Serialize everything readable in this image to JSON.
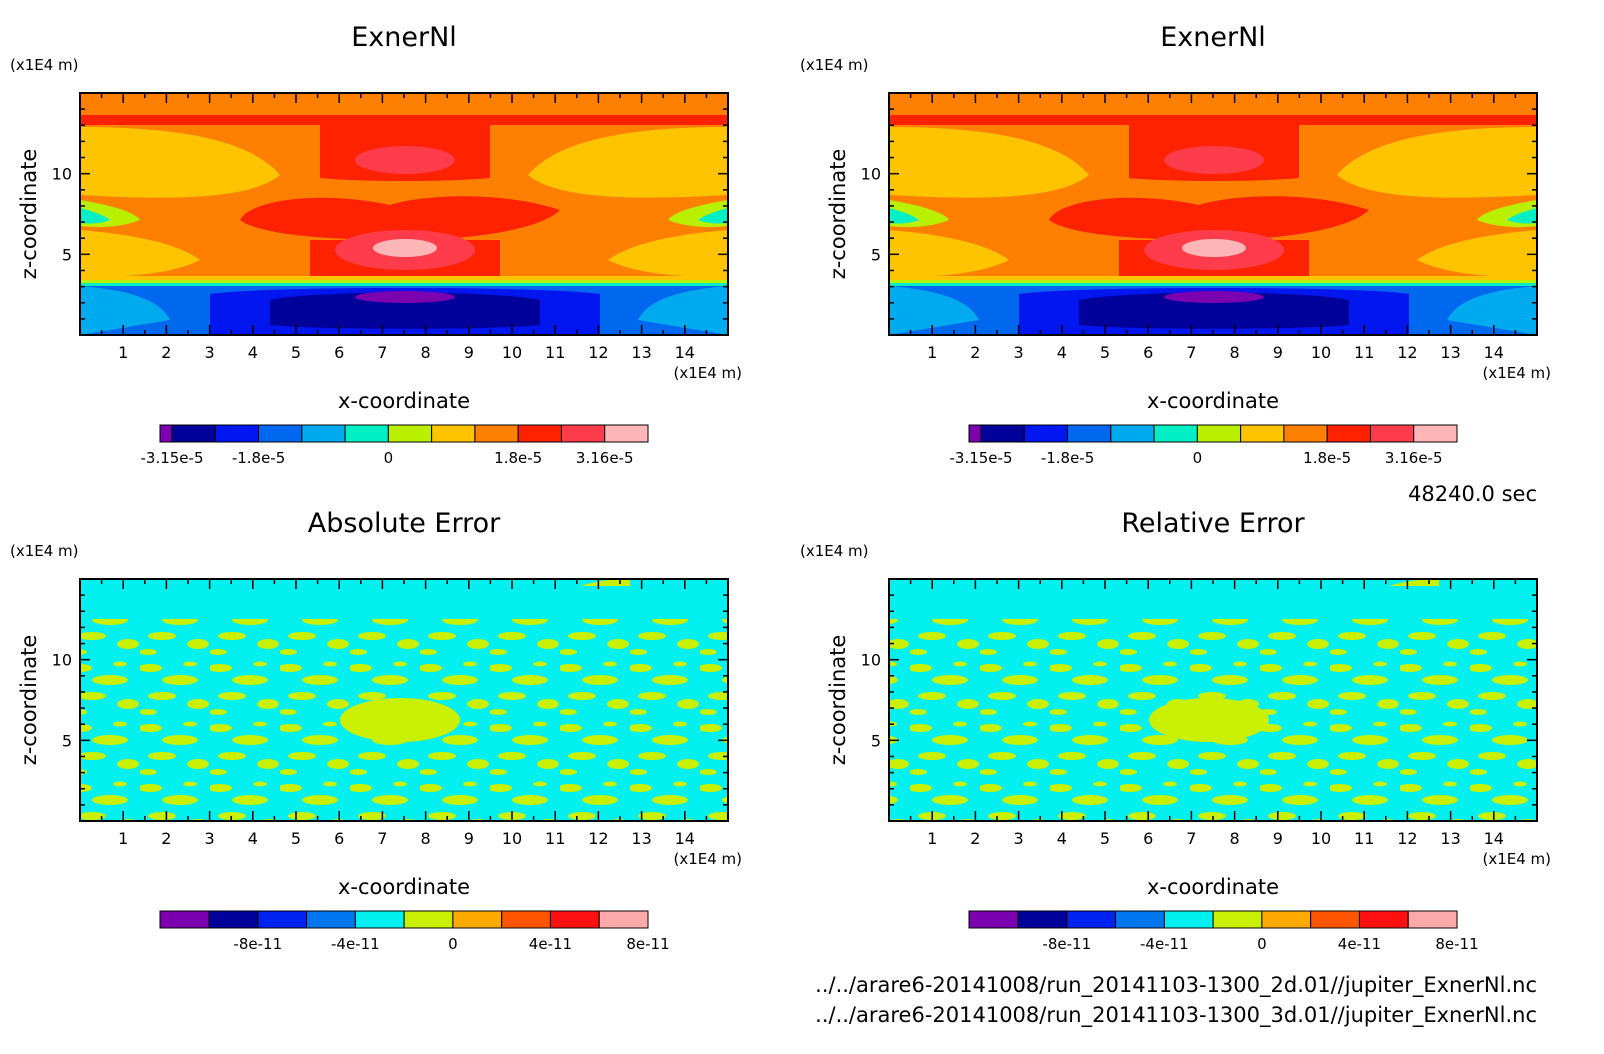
{
  "chart_data": [
    {
      "type": "heatmap",
      "title": "ExnerNl",
      "xlabel": "x-coordinate",
      "ylabel": "z-coordinate",
      "x_unit": "(x1E4 m)",
      "y_unit": "(x1E4 m)",
      "xlim": [
        0,
        15
      ],
      "ylim": [
        0,
        15
      ],
      "x_ticks": [
        "1",
        "2",
        "3",
        "4",
        "5",
        "6",
        "7",
        "8",
        "9",
        "10",
        "11",
        "12",
        "13",
        "14"
      ],
      "y_ticks": [
        "5",
        "10"
      ],
      "colorbar": {
        "colors": [
          "#7a00b0",
          "#00009a",
          "#0016ef",
          "#0067ef",
          "#00aaef",
          "#00efc5",
          "#b8f000",
          "#ffc400",
          "#ff8000",
          "#ff2200",
          "#ff3c4c",
          "#ffb6b6"
        ],
        "labels": [
          "-3.15e-5",
          "-1.8e-5",
          "0",
          "1.8e-5",
          "3.16e-5"
        ],
        "label_at": [
          0,
          2,
          5,
          8,
          10
        ]
      }
    },
    {
      "type": "heatmap",
      "title": "ExnerNl",
      "xlabel": "x-coordinate",
      "ylabel": "z-coordinate",
      "x_unit": "(x1E4 m)",
      "y_unit": "(x1E4 m)",
      "xlim": [
        0,
        15
      ],
      "ylim": [
        0,
        15
      ],
      "x_ticks": [
        "1",
        "2",
        "3",
        "4",
        "5",
        "6",
        "7",
        "8",
        "9",
        "10",
        "11",
        "12",
        "13",
        "14"
      ],
      "y_ticks": [
        "5",
        "10"
      ],
      "colorbar": {
        "colors": [
          "#7a00b0",
          "#00009a",
          "#0016ef",
          "#0067ef",
          "#00aaef",
          "#00efc5",
          "#b8f000",
          "#ffc400",
          "#ff8000",
          "#ff2200",
          "#ff3c4c",
          "#ffb6b6"
        ],
        "labels": [
          "-3.15e-5",
          "-1.8e-5",
          "0",
          "1.8e-5",
          "3.16e-5"
        ],
        "label_at": [
          0,
          2,
          5,
          8,
          10
        ]
      }
    },
    {
      "type": "heatmap",
      "title": "Absolute Error",
      "xlabel": "x-coordinate",
      "ylabel": "z-coordinate",
      "x_unit": "(x1E4 m)",
      "y_unit": "(x1E4 m)",
      "xlim": [
        0,
        15
      ],
      "ylim": [
        0,
        15
      ],
      "x_ticks": [
        "1",
        "2",
        "3",
        "4",
        "5",
        "6",
        "7",
        "8",
        "9",
        "10",
        "11",
        "12",
        "13",
        "14"
      ],
      "y_ticks": [
        "5",
        "10"
      ],
      "colorbar": {
        "colors": [
          "#7a00b0",
          "#00009a",
          "#0022ef",
          "#0077ef",
          "#00f0f0",
          "#c8f000",
          "#ffaa00",
          "#ff5500",
          "#ff1010",
          "#ffaaaa"
        ],
        "labels": [
          "-8e-11",
          "-4e-11",
          "0",
          "4e-11",
          "8e-11"
        ],
        "label_at": [
          1,
          3,
          5,
          7,
          9
        ]
      }
    },
    {
      "type": "heatmap",
      "title": "Relative Error",
      "xlabel": "x-coordinate",
      "ylabel": "z-coordinate",
      "x_unit": "(x1E4 m)",
      "y_unit": "(x1E4 m)",
      "xlim": [
        0,
        15
      ],
      "ylim": [
        0,
        15
      ],
      "x_ticks": [
        "1",
        "2",
        "3",
        "4",
        "5",
        "6",
        "7",
        "8",
        "9",
        "10",
        "11",
        "12",
        "13",
        "14"
      ],
      "y_ticks": [
        "5",
        "10"
      ],
      "colorbar": {
        "colors": [
          "#7a00b0",
          "#00009a",
          "#0022ef",
          "#0077ef",
          "#00f0f0",
          "#c8f000",
          "#ffaa00",
          "#ff5500",
          "#ff1010",
          "#ffaaaa"
        ],
        "labels": [
          "-8e-11",
          "-4e-11",
          "0",
          "4e-11",
          "8e-11"
        ],
        "label_at": [
          1,
          3,
          5,
          7,
          9
        ]
      }
    }
  ],
  "time_label": "48240.0 sec",
  "footer": {
    "file1": "../../arare6-20141008/run_20141103-1300_2d.01//jupiter_ExnerNl.nc",
    "file2": "../../arare6-20141008/run_20141103-1300_3d.01//jupiter_ExnerNl.nc"
  }
}
